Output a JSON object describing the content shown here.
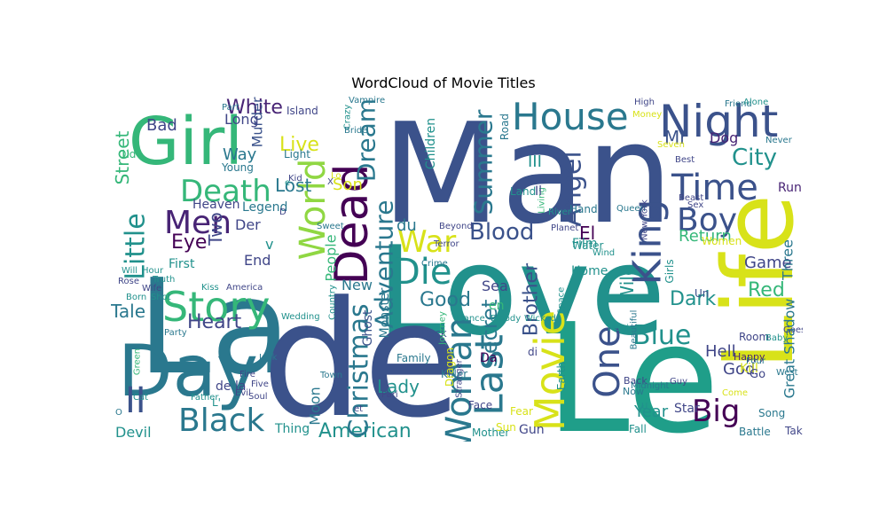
{
  "title": "WordCloud of Movie Titles",
  "palette": {
    "dkblue": "#3b528b",
    "indigo": "#404688",
    "purple": "#482475",
    "dkpurple": "#440154",
    "teal": "#21918c",
    "teal2": "#2a788e",
    "green": "#35b779",
    "ltgreen": "#5ec962",
    "lime": "#90d743",
    "yellow": "#d8e219",
    "dkteal": "#1f9e89"
  },
  "words": [
    {
      "t": "Man",
      "c": "dkblue",
      "v": false
    },
    {
      "t": "Love",
      "c": "teal",
      "v": false
    },
    {
      "t": "La",
      "c": "teal2",
      "v": false
    },
    {
      "t": "de",
      "c": "dkblue",
      "v": false
    },
    {
      "t": "Le",
      "c": "dkteal",
      "v": false
    },
    {
      "t": "Day",
      "c": "teal2",
      "v": false
    },
    {
      "t": "Girl",
      "c": "green",
      "v": false
    },
    {
      "t": "Life",
      "c": "yellow",
      "v": true
    },
    {
      "t": "Night",
      "c": "dkblue",
      "v": false
    },
    {
      "t": "House",
      "c": "teal2",
      "v": false
    },
    {
      "t": "Time",
      "c": "dkblue",
      "v": false
    },
    {
      "t": "Boy",
      "c": "dkblue",
      "v": false
    },
    {
      "t": "Death",
      "c": "green",
      "v": false
    },
    {
      "t": "Men",
      "c": "purple",
      "v": false
    },
    {
      "t": "Story",
      "c": "green",
      "v": false
    },
    {
      "t": "Little",
      "c": "teal",
      "v": true
    },
    {
      "t": "World",
      "c": "lime",
      "v": true
    },
    {
      "t": "Dead",
      "c": "dkpurple",
      "v": true
    },
    {
      "t": "Die",
      "c": "teal",
      "v": false
    },
    {
      "t": "War",
      "c": "yellow",
      "v": false
    },
    {
      "t": "Blood",
      "c": "dkblue",
      "v": false
    },
    {
      "t": "King",
      "c": "dkblue",
      "v": true
    },
    {
      "t": "Last",
      "c": "teal2",
      "v": true
    },
    {
      "t": "Woman",
      "c": "teal2",
      "v": true
    },
    {
      "t": "Movie",
      "c": "yellow",
      "v": true
    },
    {
      "t": "One",
      "c": "dkblue",
      "v": true
    },
    {
      "t": "Blue",
      "c": "teal",
      "v": false
    },
    {
      "t": "Big",
      "c": "dkpurple",
      "v": false
    },
    {
      "t": "Black",
      "c": "teal2",
      "v": false
    },
    {
      "t": "II",
      "c": "dkblue",
      "v": false
    },
    {
      "t": "American",
      "c": "teal",
      "v": false
    },
    {
      "t": "City",
      "c": "teal",
      "v": false
    },
    {
      "t": "Angel",
      "c": "dkblue",
      "v": true
    },
    {
      "t": "Summer",
      "c": "teal2",
      "v": true
    },
    {
      "t": "Adventure",
      "c": "teal2",
      "v": true
    },
    {
      "t": "Dream",
      "c": "teal2",
      "v": true
    },
    {
      "t": "White",
      "c": "purple",
      "v": false
    },
    {
      "t": "Live",
      "c": "yellow",
      "v": false
    },
    {
      "t": "Lost",
      "c": "teal2",
      "v": false
    },
    {
      "t": "Son",
      "c": "yellow",
      "v": false
    },
    {
      "t": "Eye",
      "c": "dkpurple",
      "v": false
    },
    {
      "t": "Two",
      "c": "indigo",
      "v": true
    },
    {
      "t": "Heart",
      "c": "indigo",
      "v": false
    },
    {
      "t": "Tale",
      "c": "teal2",
      "v": false
    },
    {
      "t": "Christmas",
      "c": "teal2",
      "v": true
    },
    {
      "t": "Secret",
      "c": "teal2",
      "v": true
    },
    {
      "t": "Lady",
      "c": "teal",
      "v": false
    },
    {
      "t": "Good",
      "c": "teal2",
      "v": false
    },
    {
      "t": "Dark",
      "c": "teal",
      "v": false
    },
    {
      "t": "Red",
      "c": "green",
      "v": false
    },
    {
      "t": "Hell",
      "c": "indigo",
      "v": false
    },
    {
      "t": "God",
      "c": "indigo",
      "v": false
    },
    {
      "t": "Return",
      "c": "green",
      "v": false
    },
    {
      "t": "Year",
      "c": "teal",
      "v": false
    },
    {
      "t": "Dog",
      "c": "purple",
      "v": false
    },
    {
      "t": "Mr",
      "c": "dkblue",
      "v": false
    },
    {
      "t": "Street",
      "c": "green",
      "v": true
    },
    {
      "t": "Bad",
      "c": "indigo",
      "v": false
    },
    {
      "t": "Murder",
      "c": "dkblue",
      "v": true
    },
    {
      "t": "Way",
      "c": "teal2",
      "v": false
    },
    {
      "t": "Long",
      "c": "indigo",
      "v": false
    },
    {
      "t": "Game",
      "c": "indigo",
      "v": false
    },
    {
      "t": "Three",
      "c": "teal2",
      "v": true
    },
    {
      "t": "Great Shadow",
      "c": "teal2",
      "v": true
    },
    {
      "t": "Devil",
      "c": "teal",
      "v": false
    },
    {
      "t": "Moon",
      "c": "teal2",
      "v": true
    },
    {
      "t": "New",
      "c": "teal2",
      "v": false
    },
    {
      "t": "People",
      "c": "green",
      "v": true
    },
    {
      "t": "El",
      "c": "dkpurple",
      "v": false
    },
    {
      "t": "du",
      "c": "teal2",
      "v": false
    },
    {
      "t": "Sea",
      "c": "indigo",
      "v": false
    },
    {
      "t": "Wild",
      "c": "teal",
      "v": true
    },
    {
      "t": "Der",
      "c": "indigo",
      "v": false
    },
    {
      "t": "End",
      "c": "indigo",
      "v": false
    },
    {
      "t": "First",
      "c": "teal",
      "v": false
    },
    {
      "t": "Thing",
      "c": "teal",
      "v": false
    },
    {
      "t": "III",
      "c": "teal",
      "v": false
    },
    {
      "t": "Children",
      "c": "teal",
      "v": true
    },
    {
      "t": "Kill",
      "c": "yellow",
      "v": false
    },
    {
      "t": "Brother",
      "c": "dkblue",
      "v": true
    },
    {
      "t": "Home",
      "c": "teal",
      "v": false
    },
    {
      "t": "Film",
      "c": "teal",
      "v": false
    },
    {
      "t": "Ghost",
      "c": "dkblue",
      "v": true
    },
    {
      "t": "Monster",
      "c": "teal2",
      "v": true
    },
    {
      "t": "Gun",
      "c": "indigo",
      "v": false
    },
    {
      "t": "Star",
      "c": "indigo",
      "v": false
    },
    {
      "t": "Heaven",
      "c": "indigo",
      "v": false
    },
    {
      "t": "Legend",
      "c": "teal2",
      "v": false
    },
    {
      "t": "Old",
      "c": "green",
      "v": false
    },
    {
      "t": "Island",
      "c": "indigo",
      "v": false
    },
    {
      "t": "Light",
      "c": "teal2",
      "v": false
    },
    {
      "t": "Young",
      "c": "teal2",
      "v": false
    },
    {
      "t": "Kid",
      "c": "indigo",
      "v": false
    },
    {
      "t": "Road",
      "c": "teal2",
      "v": true
    },
    {
      "t": "Part",
      "c": "teal2",
      "v": false
    },
    {
      "t": "Land",
      "c": "teal",
      "v": false
    },
    {
      "t": "Hand",
      "c": "teal2",
      "v": false
    },
    {
      "t": "Water",
      "c": "teal",
      "v": false
    },
    {
      "t": "Rock",
      "c": "dkblue",
      "v": false
    },
    {
      "t": "Family",
      "c": "teal2",
      "v": false
    },
    {
      "t": "Face",
      "c": "indigo",
      "v": false
    },
    {
      "t": "Mother",
      "c": "teal",
      "v": false
    },
    {
      "t": "Fall",
      "c": "teal",
      "v": false
    },
    {
      "t": "Take",
      "c": "indigo",
      "v": false
    },
    {
      "t": "Song",
      "c": "teal2",
      "v": false
    },
    {
      "t": "Battle",
      "c": "teal2",
      "v": false
    },
    {
      "t": "Earth",
      "c": "teal",
      "v": true
    },
    {
      "t": "Kiss",
      "c": "teal",
      "v": false
    },
    {
      "t": "Evil",
      "c": "indigo",
      "v": false
    },
    {
      "t": "Fire",
      "c": "indigo",
      "v": false
    },
    {
      "t": "Five",
      "c": "indigo",
      "v": false
    },
    {
      "t": "Soul",
      "c": "indigo",
      "v": false
    },
    {
      "t": "Rose",
      "c": "indigo",
      "v": false
    },
    {
      "t": "Women",
      "c": "yellow",
      "v": false
    },
    {
      "t": "Friend",
      "c": "teal2",
      "v": false
    },
    {
      "t": "Never",
      "c": "teal2",
      "v": false
    },
    {
      "t": "High",
      "c": "indigo",
      "v": false
    },
    {
      "t": "Money",
      "c": "yellow",
      "v": false
    },
    {
      "t": "Best",
      "c": "indigo",
      "v": false
    },
    {
      "t": "Seven",
      "c": "yellow",
      "v": false
    },
    {
      "t": "Run",
      "c": "purple",
      "v": false
    },
    {
      "t": "Sun",
      "c": "yellow",
      "v": false
    },
    {
      "t": "Crime",
      "c": "teal2",
      "v": false
    },
    {
      "t": "Terror",
      "c": "indigo",
      "v": false
    },
    {
      "t": "Beyond",
      "c": "indigo",
      "v": false
    },
    {
      "t": "River",
      "c": "teal",
      "v": false
    },
    {
      "t": "Planet",
      "c": "indigo",
      "v": false
    },
    {
      "t": "America",
      "c": "indigo",
      "v": false
    },
    {
      "t": "Country",
      "c": "teal",
      "v": true
    },
    {
      "t": "Wedding",
      "c": "teal",
      "v": false
    },
    {
      "t": "Journey",
      "c": "green",
      "v": true
    },
    {
      "t": "Magic",
      "c": "teal",
      "v": false
    },
    {
      "t": "Stranger",
      "c": "indigo",
      "v": true
    },
    {
      "t": "Beautiful",
      "c": "teal2",
      "v": true
    },
    {
      "t": "Killer",
      "c": "teal2",
      "v": false
    },
    {
      "t": "Dragon",
      "c": "yellow",
      "v": true
    },
    {
      "t": "Fear",
      "c": "yellow",
      "v": false
    },
    {
      "t": "Room",
      "c": "indigo",
      "v": false
    },
    {
      "t": "Happy",
      "c": "purple",
      "v": false
    },
    {
      "t": "Baby",
      "c": "teal",
      "v": false
    },
    {
      "t": "Four",
      "c": "teal2",
      "v": false
    },
    {
      "t": "Back",
      "c": "indigo",
      "v": false
    },
    {
      "t": "Now",
      "c": "teal2",
      "v": false
    },
    {
      "t": "Space",
      "c": "teal",
      "v": true
    },
    {
      "t": "Wind",
      "c": "teal",
      "v": false
    },
    {
      "t": "Cat",
      "c": "teal",
      "v": false
    },
    {
      "t": "Party",
      "c": "teal2",
      "v": false
    },
    {
      "t": "Green",
      "c": "green",
      "v": true
    },
    {
      "t": "Father",
      "c": "teal",
      "v": false
    },
    {
      "t": "Pari",
      "c": "indigo",
      "v": false
    },
    {
      "t": "Jack",
      "c": "teal2",
      "v": false
    },
    {
      "t": "Crazy",
      "c": "teal",
      "v": true
    },
    {
      "t": "Vampire",
      "c": "teal2",
      "v": false
    },
    {
      "t": "Bride",
      "c": "teal2",
      "v": false
    },
    {
      "t": "Queen",
      "c": "teal2",
      "v": false
    },
    {
      "t": "New York",
      "c": "indigo",
      "v": true
    },
    {
      "t": "Living",
      "c": "green",
      "v": true
    },
    {
      "t": "Beast",
      "c": "indigo",
      "v": false
    },
    {
      "t": "Sex",
      "c": "indigo",
      "v": false
    },
    {
      "t": "Guy",
      "c": "indigo",
      "v": false
    },
    {
      "t": "Come",
      "c": "yellow",
      "v": false
    },
    {
      "t": "West",
      "c": "teal2",
      "v": false
    },
    {
      "t": "Goes",
      "c": "indigo",
      "v": false
    },
    {
      "t": "Girls",
      "c": "teal",
      "v": true
    },
    {
      "t": "en",
      "c": "green",
      "v": false
    },
    {
      "t": "Un",
      "c": "dkblue",
      "v": false
    },
    {
      "t": "Da",
      "c": "dkpurple",
      "v": false
    },
    {
      "t": "Il",
      "c": "indigo",
      "v": false
    },
    {
      "t": "di",
      "c": "indigo",
      "v": false
    },
    {
      "t": "Go",
      "c": "indigo",
      "v": false
    },
    {
      "t": "e",
      "c": "teal",
      "v": false
    },
    {
      "t": "et",
      "c": "indigo",
      "v": false
    },
    {
      "t": "de la",
      "c": "indigo",
      "v": false
    },
    {
      "t": "v",
      "c": "teal",
      "v": false
    },
    {
      "t": "L'",
      "c": "teal",
      "v": false
    },
    {
      "t": "O",
      "c": "teal2",
      "v": false
    },
    {
      "t": "U",
      "c": "teal",
      "v": false
    },
    {
      "t": "X",
      "c": "indigo",
      "v": false
    },
    {
      "t": "Lo",
      "c": "yellow",
      "v": false
    },
    {
      "t": "D",
      "c": "indigo",
      "v": false
    },
    {
      "t": "Sweet",
      "c": "teal2",
      "v": false
    },
    {
      "t": "Town",
      "c": "teal2",
      "v": false
    },
    {
      "t": "Midnight",
      "c": "teal2",
      "v": false
    },
    {
      "t": "Wife",
      "c": "indigo",
      "v": false
    },
    {
      "t": "Will",
      "c": "teal",
      "v": false
    },
    {
      "t": "Born",
      "c": "teal",
      "v": false
    },
    {
      "t": "Shot",
      "c": "teal",
      "v": false
    },
    {
      "t": "Hour",
      "c": "teal",
      "v": false
    },
    {
      "t": "Truth",
      "c": "teal",
      "v": false
    },
    {
      "t": "Alone",
      "c": "teal",
      "v": false
    },
    {
      "t": "Dance",
      "c": "teal",
      "v": false
    },
    {
      "t": "Bloody",
      "c": "teal",
      "v": false
    },
    {
      "t": "Wicked",
      "c": "teal",
      "v": false
    }
  ]
}
